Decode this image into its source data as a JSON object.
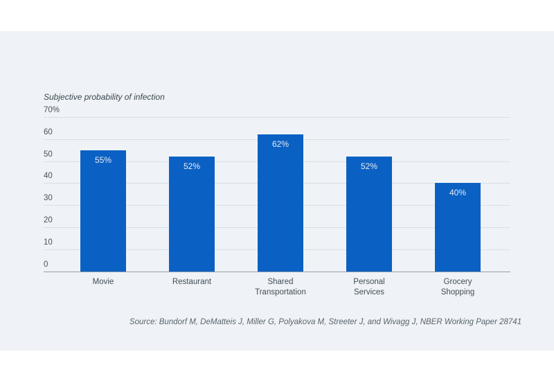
{
  "source": "Source:  Bundorf M, DeMatteis J, Miller G, Polyakova M, Streeter J, and Wivagg J, NBER Working Paper 28741",
  "colors": {
    "chart_background": "#eff3f7",
    "page_background": "#ffffff",
    "bar": "#0b61c3",
    "bar_value_label": "#e6edf7",
    "gridline": "#d9dfe6",
    "axis_line": "#929ca6",
    "text": "#424c56"
  },
  "chart_data": {
    "type": "bar",
    "title": "Subjective probability of infection",
    "categories": [
      "Movie",
      "Restaurant",
      "Shared Transportation",
      "Personal Services",
      "Grocery Shopping"
    ],
    "category_display": [
      "Movie",
      "Restaurant",
      "Shared\nTransportation",
      "Personal\nServices",
      "Grocery\nShopping"
    ],
    "values": [
      55,
      52,
      62,
      52,
      40
    ],
    "value_labels": [
      "55%",
      "52%",
      "62%",
      "52%",
      "40%"
    ],
    "xlabel": "",
    "ylabel": "Subjective probability of infection",
    "ylim": [
      0,
      70
    ],
    "yticks": [
      {
        "value": 70,
        "label": "70%"
      },
      {
        "value": 60,
        "label": "60"
      },
      {
        "value": 50,
        "label": "50"
      },
      {
        "value": 40,
        "label": "40"
      },
      {
        "value": 30,
        "label": "30"
      },
      {
        "value": 20,
        "label": "20"
      },
      {
        "value": 10,
        "label": "10"
      },
      {
        "value": 0,
        "label": "0"
      }
    ],
    "grid": true,
    "legend": false
  }
}
